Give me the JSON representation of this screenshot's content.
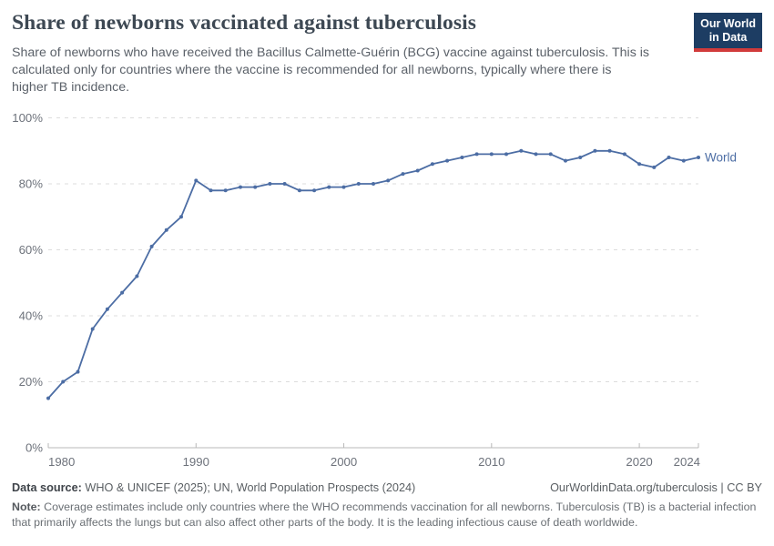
{
  "header": {
    "title": "Share of newborns vaccinated against tuberculosis",
    "subtitle": "Share of newborns who have received the Bacillus Calmette-Guérin (BCG) vaccine against tuberculosis. This is\ncalculated only for countries where the vaccine is recommended for all newborns, typically where there is\nhigher TB incidence.",
    "logo": {
      "line1": "Our World",
      "line2": "in Data",
      "bg_color": "#1d3d63",
      "bar_color": "#d13b3b"
    }
  },
  "chart_data": {
    "type": "line",
    "title": "Share of newborns vaccinated against tuberculosis",
    "xlabel": "",
    "ylabel": "",
    "x": [
      1980,
      1981,
      1982,
      1983,
      1984,
      1985,
      1986,
      1987,
      1988,
      1989,
      1990,
      1991,
      1992,
      1993,
      1994,
      1995,
      1996,
      1997,
      1998,
      1999,
      2000,
      2001,
      2002,
      2003,
      2004,
      2005,
      2006,
      2007,
      2008,
      2009,
      2010,
      2011,
      2012,
      2013,
      2014,
      2015,
      2016,
      2017,
      2018,
      2019,
      2020,
      2021,
      2022,
      2023,
      2024
    ],
    "series": [
      {
        "name": "World",
        "color": "#4c6da4",
        "values": [
          15,
          20,
          23,
          36,
          42,
          47,
          52,
          61,
          66,
          70,
          81,
          78,
          78,
          79,
          79,
          80,
          80,
          78,
          78,
          79,
          79,
          80,
          80,
          81,
          83,
          84,
          86,
          87,
          88,
          89,
          89,
          89,
          90,
          89,
          89,
          87,
          88,
          90,
          90,
          89,
          86,
          85,
          88,
          87,
          88
        ]
      }
    ],
    "end_label": "World",
    "xlim": [
      1980,
      2024
    ],
    "ylim": [
      0,
      100
    ],
    "yticks": [
      {
        "value": 0,
        "label": "0%"
      },
      {
        "value": 20,
        "label": "20%"
      },
      {
        "value": 40,
        "label": "40%"
      },
      {
        "value": 60,
        "label": "60%"
      },
      {
        "value": 80,
        "label": "80%"
      },
      {
        "value": 100,
        "label": "100%"
      }
    ],
    "xticks": [
      {
        "value": 1980,
        "label": "1980"
      },
      {
        "value": 1990,
        "label": "1990"
      },
      {
        "value": 2000,
        "label": "2000"
      },
      {
        "value": 2010,
        "label": "2010"
      },
      {
        "value": 2020,
        "label": "2020"
      },
      {
        "value": 2024,
        "label": "2024"
      }
    ],
    "grid": "horizontal-dashed",
    "legend_position": "end-of-line"
  },
  "footer": {
    "source_label": "Data source:",
    "source_text": " WHO & UNICEF (2025); UN, World Population Prospects (2024)",
    "link_text": "OurWorldinData.org/tuberculosis | CC BY",
    "note_label": "Note:",
    "note_text": " Coverage estimates include only countries where the WHO recommends vaccination for all newborns. Tuberculosis (TB) is a bacterial infection that primarily affects the lungs but can also affect other parts of the body. It is the leading infectious cause of death worldwide."
  }
}
